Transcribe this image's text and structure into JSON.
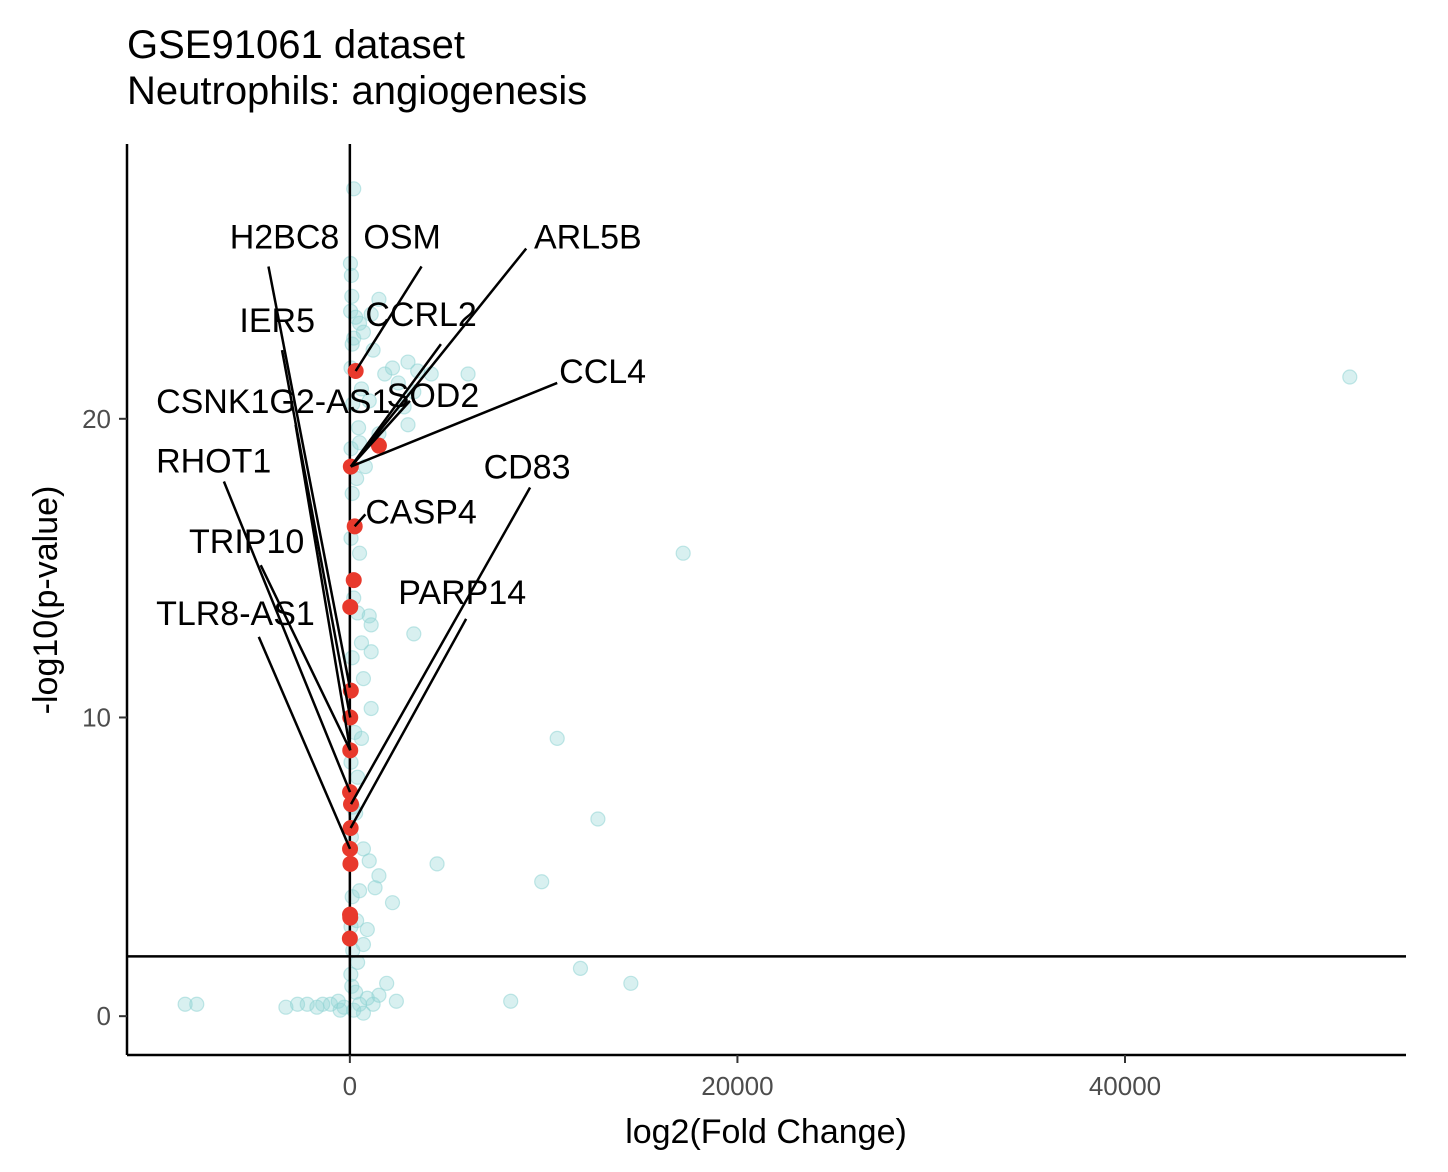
{
  "chart_data": {
    "type": "scatter",
    "title": "GSE91061 dataset",
    "subtitle": "Neutrophils: angiogenesis",
    "xlabel": "log2(Fold Change)",
    "ylabel": "-log10(p-value)",
    "xlim": [
      -11500,
      54500
    ],
    "ylim": [
      -1.3,
      29.2
    ],
    "xticks": [
      0,
      20000,
      40000
    ],
    "xtick_labels": [
      "0",
      "20000",
      "40000"
    ],
    "yticks": [
      0,
      10,
      20
    ],
    "ytick_labels": [
      "0",
      "10",
      "20"
    ],
    "hline": 2,
    "vline": 0,
    "grid": false,
    "background_color": "#8fd3d3",
    "highlight_color": "#e8392c",
    "series": [
      {
        "values_bg": [
          [
            200,
            27.7
          ],
          [
            30,
            25.2
          ],
          [
            80,
            24.8
          ],
          [
            100,
            24.1
          ],
          [
            40,
            23.6
          ],
          [
            300,
            23.4
          ],
          [
            500,
            23.2
          ],
          [
            1500,
            24.0
          ],
          [
            1100,
            23.5
          ],
          [
            700,
            22.9
          ],
          [
            200,
            22.7
          ],
          [
            1200,
            22.3
          ],
          [
            2200,
            21.7
          ],
          [
            3000,
            21.9
          ],
          [
            3500,
            21.6
          ],
          [
            4200,
            21.5
          ],
          [
            6100,
            21.5
          ],
          [
            1800,
            21.5
          ],
          [
            2500,
            21.2
          ],
          [
            3300,
            20.9
          ],
          [
            2800,
            20.4
          ],
          [
            1000,
            20.6
          ],
          [
            3000,
            19.8
          ],
          [
            1500,
            19.5
          ],
          [
            500,
            19.2
          ],
          [
            800,
            18.4
          ],
          [
            1000,
            13.4
          ],
          [
            1100,
            13.1
          ],
          [
            3300,
            12.8
          ],
          [
            1100,
            12.2
          ],
          [
            700,
            11.3
          ],
          [
            1100,
            10.3
          ],
          [
            600,
            9.3
          ],
          [
            10700,
            9.3
          ],
          [
            12800,
            6.6
          ],
          [
            17200,
            15.5
          ],
          [
            51600,
            21.4
          ],
          [
            4500,
            5.1
          ],
          [
            9900,
            4.5
          ],
          [
            700,
            5.6
          ],
          [
            1000,
            5.2
          ],
          [
            1500,
            4.7
          ],
          [
            1300,
            4.3
          ],
          [
            2200,
            3.8
          ],
          [
            900,
            2.9
          ],
          [
            11900,
            1.6
          ],
          [
            14500,
            1.1
          ],
          [
            1900,
            1.1
          ],
          [
            1500,
            0.7
          ],
          [
            2400,
            0.5
          ],
          [
            8300,
            0.5
          ],
          [
            -8500,
            0.4
          ],
          [
            -7900,
            0.4
          ],
          [
            -3300,
            0.3
          ],
          [
            -2700,
            0.4
          ],
          [
            -2200,
            0.4
          ],
          [
            -1700,
            0.3
          ],
          [
            -1400,
            0.4
          ],
          [
            -1000,
            0.4
          ],
          [
            -600,
            0.5
          ],
          [
            -300,
            0.3
          ],
          [
            200,
            0.2
          ],
          [
            500,
            0.4
          ],
          [
            900,
            0.6
          ],
          [
            1200,
            0.4
          ],
          [
            700,
            0.1
          ],
          [
            -500,
            0.2
          ],
          [
            300,
            0.8
          ],
          [
            100,
            1.0
          ],
          [
            50,
            1.4
          ],
          [
            150,
            2.2
          ],
          [
            60,
            3.0
          ],
          [
            120,
            4.0
          ],
          [
            80,
            6.0
          ],
          [
            150,
            7.0
          ],
          [
            60,
            8.5
          ],
          [
            120,
            12.0
          ],
          [
            200,
            14.0
          ],
          [
            60,
            16.0
          ],
          [
            120,
            17.5
          ],
          [
            60,
            19.0
          ],
          [
            150,
            20.5
          ],
          [
            60,
            21.7
          ],
          [
            120,
            22.5
          ],
          [
            500,
            15.5
          ],
          [
            400,
            13.5
          ],
          [
            600,
            12.5
          ],
          [
            350,
            18.0
          ],
          [
            450,
            19.7
          ],
          [
            600,
            21.0
          ],
          [
            250,
            9.5
          ],
          [
            400,
            8.0
          ],
          [
            300,
            6.8
          ],
          [
            500,
            4.2
          ],
          [
            350,
            3.2
          ],
          [
            700,
            2.4
          ],
          [
            400,
            1.8
          ]
        ]
      }
    ],
    "highlights": [
      {
        "x": 300,
        "y": 21.6
      },
      {
        "x": 1500,
        "y": 19.1
      },
      {
        "x": 50,
        "y": 18.4
      },
      {
        "x": 250,
        "y": 16.4
      },
      {
        "x": 200,
        "y": 14.6
      },
      {
        "x": 20,
        "y": 13.7
      },
      {
        "x": 50,
        "y": 10.9
      },
      {
        "x": 20,
        "y": 10.0
      },
      {
        "x": 20,
        "y": 8.9
      },
      {
        "x": 10,
        "y": 7.5
      },
      {
        "x": 60,
        "y": 7.1
      },
      {
        "x": 40,
        "y": 6.3
      },
      {
        "x": 10,
        "y": 5.6
      },
      {
        "x": 30,
        "y": 5.1
      },
      {
        "x": 10,
        "y": 3.4
      },
      {
        "x": 20,
        "y": 3.3
      },
      {
        "x": 0,
        "y": 2.6
      }
    ],
    "annotations": [
      {
        "text": "H2BC8",
        "x": -6200,
        "y": 25.7,
        "line_from": [
          -4200,
          25.1
        ],
        "line_to": [
          0,
          11.0
        ]
      },
      {
        "text": "OSM",
        "x": 700,
        "y": 25.7,
        "line_from": [
          3700,
          25.1
        ],
        "line_to": [
          300,
          21.6
        ]
      },
      {
        "text": "ARL5B",
        "x": 9500,
        "y": 25.7,
        "line_from": [
          9100,
          25.7
        ],
        "line_to": [
          50,
          18.4
        ]
      },
      {
        "text": "IER5",
        "x": -5700,
        "y": 22.9,
        "line_from": [
          -3500,
          22.3
        ],
        "line_to": [
          20,
          10.0
        ]
      },
      {
        "text": "CCRL2",
        "x": 800,
        "y": 23.1,
        "line_from": [
          4700,
          22.5
        ],
        "line_to": [
          50,
          18.4
        ]
      },
      {
        "text": "CCL4",
        "x": 10800,
        "y": 21.2,
        "line_from": [
          10700,
          21.2
        ],
        "line_to": [
          50,
          18.4
        ]
      },
      {
        "text": "SOD2",
        "x": 1900,
        "y": 20.4,
        "line_from": [
          3100,
          20.6
        ],
        "line_to": [
          50,
          18.4
        ]
      },
      {
        "text": "CSNK1G2-AS1",
        "x": -10000,
        "y": 20.2,
        "line_from": [
          -2800,
          19.8
        ],
        "line_to": [
          20,
          8.9
        ]
      },
      {
        "text": "RHOT1",
        "x": -10000,
        "y": 18.2,
        "line_from": [
          -6500,
          17.9
        ],
        "line_to": [
          10,
          7.5
        ]
      },
      {
        "text": "CD83",
        "x": 6900,
        "y": 18.0,
        "line_from": [
          9300,
          17.7
        ],
        "line_to": [
          60,
          7.1
        ]
      },
      {
        "text": "CASP4",
        "x": 800,
        "y": 16.5,
        "line_from": [
          800,
          16.8
        ],
        "line_to": [
          250,
          16.4
        ]
      },
      {
        "text": "TRIP10",
        "x": -8300,
        "y": 15.5,
        "line_from": [
          -4600,
          15.1
        ],
        "line_to": [
          20,
          8.9
        ]
      },
      {
        "text": "PARP14",
        "x": 2500,
        "y": 13.8,
        "line_from": [
          6000,
          13.3
        ],
        "line_to": [
          40,
          6.3
        ]
      },
      {
        "text": "TLR8-AS1",
        "x": -10000,
        "y": 13.1,
        "line_from": [
          -4700,
          12.7
        ],
        "line_to": [
          10,
          5.6
        ]
      }
    ]
  }
}
